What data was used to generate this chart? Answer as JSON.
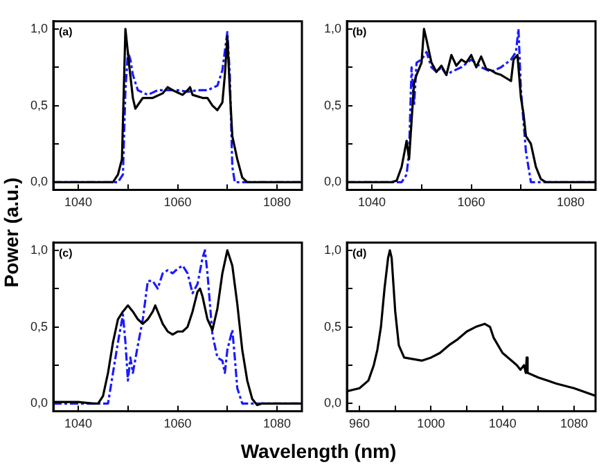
{
  "chart_data": [
    {
      "type": "line",
      "ylabel": "Power (a.u.)",
      "annotations": [
        "(a)"
      ],
      "xlim": [
        1035,
        1085
      ],
      "ylim": [
        -0.05,
        1.05
      ],
      "grid": false,
      "xticks": [
        1040,
        {
          "value": 1050,
          "label": null
        },
        1060,
        {
          "value": 1070,
          "label": null
        },
        1080
      ],
      "yticks": [
        {
          "value": 0,
          "label": "0,0"
        },
        {
          "value": 0.25,
          "label": null
        },
        {
          "value": 0.5,
          "label": "0,5"
        },
        {
          "value": 0.75,
          "label": null
        },
        {
          "value": 1,
          "label": "1,0"
        }
      ],
      "series": [
        {
          "color": "#000000",
          "line_style": "solid",
          "x": [
            1035,
            1047,
            1048,
            1048.8,
            1049.5,
            1050.3,
            1051,
            1051.5,
            1053,
            1055,
            1057,
            1058,
            1059,
            1061,
            1062,
            1062.5,
            1063,
            1065,
            1066,
            1067,
            1068,
            1069,
            1069.5,
            1070,
            1070.5,
            1071,
            1072,
            1073,
            1074,
            1085
          ],
          "values": [
            0,
            0,
            0.05,
            0.15,
            1.0,
            0.75,
            0.55,
            0.48,
            0.55,
            0.55,
            0.58,
            0.62,
            0.6,
            0.57,
            0.6,
            0.62,
            0.57,
            0.55,
            0.55,
            0.5,
            0.47,
            0.52,
            0.7,
            0.95,
            0.6,
            0.3,
            0.15,
            0.03,
            0,
            0
          ]
        },
        {
          "color": "#1a1aff",
          "line_style": "dashed",
          "x": [
            1035,
            1048,
            1049,
            1049.5,
            1050,
            1050.5,
            1051,
            1052,
            1054,
            1056,
            1058,
            1060,
            1062,
            1064,
            1066,
            1068,
            1069,
            1070,
            1070.5,
            1071,
            1071.5,
            1085
          ],
          "values": [
            0,
            0,
            0.05,
            0.6,
            0.85,
            0.8,
            0.7,
            0.6,
            0.57,
            0.6,
            0.6,
            0.6,
            0.59,
            0.6,
            0.6,
            0.63,
            0.73,
            0.98,
            0.7,
            0.1,
            0,
            0
          ]
        }
      ]
    },
    {
      "type": "line",
      "annotations": [
        "(b)"
      ],
      "xlim": [
        1035,
        1085
      ],
      "ylim": [
        -0.05,
        1.05
      ],
      "grid": false,
      "xticks": [
        1040,
        {
          "value": 1050,
          "label": null
        },
        1060,
        {
          "value": 1070,
          "label": null
        },
        1080
      ],
      "yticks": [
        {
          "value": 0,
          "label": "0,0"
        },
        {
          "value": 0.25,
          "label": null
        },
        {
          "value": 0.5,
          "label": "0,5"
        },
        {
          "value": 0.75,
          "label": null
        },
        {
          "value": 1,
          "label": "1,0"
        }
      ],
      "series": [
        {
          "color": "#000000",
          "line_style": "solid",
          "x": [
            1035,
            1044,
            1045,
            1046,
            1047,
            1047.5,
            1048,
            1048.5,
            1049,
            1050,
            1050.5,
            1051,
            1052,
            1053,
            1054,
            1055,
            1056,
            1057,
            1058,
            1059,
            1060,
            1061,
            1062,
            1063,
            1064,
            1065,
            1066,
            1067,
            1068,
            1068.5,
            1069.3,
            1070,
            1070.5,
            1071,
            1072,
            1073,
            1074,
            1075,
            1085
          ],
          "values": [
            0,
            0,
            0.01,
            0.1,
            0.27,
            0.15,
            0.4,
            0.65,
            0.7,
            0.78,
            1.0,
            0.93,
            0.78,
            0.72,
            0.76,
            0.7,
            0.83,
            0.76,
            0.8,
            0.78,
            0.83,
            0.75,
            0.82,
            0.74,
            0.73,
            0.71,
            0.7,
            0.68,
            0.66,
            0.8,
            0.83,
            0.55,
            0.45,
            0.3,
            0.25,
            0.1,
            0.02,
            0,
            0
          ]
        },
        {
          "color": "#1a1aff",
          "line_style": "dashed",
          "x": [
            1035,
            1046,
            1047,
            1047.5,
            1048,
            1048.5,
            1049,
            1050,
            1051,
            1052,
            1053,
            1054,
            1055,
            1056,
            1058,
            1060,
            1062,
            1064,
            1066,
            1068,
            1069,
            1069.5,
            1070,
            1070.5,
            1071,
            1071.5,
            1072,
            1085
          ],
          "values": [
            0,
            0,
            0.05,
            0.2,
            0.75,
            0.5,
            0.78,
            0.8,
            0.85,
            0.75,
            0.72,
            0.75,
            0.7,
            0.72,
            0.75,
            0.8,
            0.75,
            0.72,
            0.75,
            0.8,
            0.85,
            1.0,
            0.6,
            0.4,
            0.2,
            0.1,
            0,
            0
          ]
        }
      ]
    },
    {
      "type": "line",
      "xlabel": "Wavelength (nm)",
      "annotations": [
        "(c)"
      ],
      "xlim": [
        1035,
        1085
      ],
      "ylim": [
        -0.05,
        1.05
      ],
      "grid": false,
      "xticks": [
        1040,
        {
          "value": 1050,
          "label": null
        },
        1060,
        {
          "value": 1070,
          "label": null
        },
        1080
      ],
      "yticks": [
        {
          "value": 0,
          "label": "0,0"
        },
        {
          "value": 0.25,
          "label": null
        },
        {
          "value": 0.5,
          "label": "0,5"
        },
        {
          "value": 0.75,
          "label": null
        },
        {
          "value": 1,
          "label": "1,0"
        }
      ],
      "series": [
        {
          "color": "#000000",
          "line_style": "solid",
          "x": [
            1035,
            1040,
            1043,
            1044,
            1045,
            1046,
            1047,
            1048,
            1049,
            1050,
            1051,
            1052,
            1053,
            1054,
            1055,
            1055.5,
            1056,
            1057,
            1058,
            1059,
            1060,
            1061,
            1062,
            1063,
            1064,
            1064.5,
            1065,
            1066,
            1067,
            1068,
            1069,
            1070,
            1071,
            1072,
            1073,
            1074,
            1075,
            1076,
            1077,
            1085
          ],
          "values": [
            0.01,
            0.01,
            0,
            0,
            0.05,
            0.2,
            0.4,
            0.55,
            0.6,
            0.64,
            0.6,
            0.55,
            0.52,
            0.55,
            0.6,
            0.64,
            0.6,
            0.52,
            0.47,
            0.45,
            0.47,
            0.47,
            0.5,
            0.6,
            0.73,
            0.75,
            0.7,
            0.55,
            0.48,
            0.62,
            0.85,
            1.0,
            0.9,
            0.65,
            0.35,
            0.15,
            0.03,
            -0.01,
            0,
            0
          ]
        },
        {
          "color": "#1a1aff",
          "line_style": "dashed",
          "x": [
            1035,
            1044,
            1046,
            1047,
            1048,
            1049,
            1049.5,
            1050,
            1050.5,
            1051,
            1052,
            1053,
            1054,
            1055,
            1056,
            1057,
            1058,
            1059,
            1060,
            1061,
            1062,
            1063,
            1064,
            1065,
            1065.5,
            1066,
            1067,
            1068,
            1069,
            1069.5,
            1070,
            1071,
            1071.5,
            1072,
            1073,
            1085
          ],
          "values": [
            0,
            0,
            0,
            0.2,
            0.4,
            0.58,
            0.4,
            0.15,
            0.3,
            0.2,
            0.38,
            0.55,
            0.8,
            0.8,
            0.75,
            0.85,
            0.87,
            0.85,
            0.88,
            0.9,
            0.85,
            0.72,
            0.78,
            0.95,
            1.0,
            0.85,
            0.45,
            0.3,
            0.28,
            0.2,
            0.35,
            0.48,
            0.3,
            0.1,
            0,
            0
          ]
        }
      ]
    },
    {
      "type": "line",
      "annotations": [
        "(d)"
      ],
      "xlim": [
        953,
        1092
      ],
      "ylim": [
        -0.05,
        1.05
      ],
      "grid": false,
      "xticks": [
        960,
        {
          "value": 980,
          "label": null
        },
        1000,
        {
          "value": 1020,
          "label": null
        },
        1040,
        {
          "value": 1060,
          "label": null
        },
        1080
      ],
      "yticks": [
        {
          "value": 0,
          "label": "0,0"
        },
        {
          "value": 0.25,
          "label": null
        },
        {
          "value": 0.5,
          "label": "0,5"
        },
        {
          "value": 0.75,
          "label": null
        },
        {
          "value": 1,
          "label": "1,0"
        }
      ],
      "series": [
        {
          "color": "#000000",
          "line_style": "solid",
          "x": [
            953,
            960,
            965,
            968,
            970,
            972,
            974,
            976,
            977,
            978,
            980,
            982,
            985,
            990,
            995,
            1000,
            1005,
            1010,
            1015,
            1020,
            1025,
            1030,
            1033,
            1035,
            1040,
            1045,
            1048,
            1050,
            1052,
            1053,
            1053.5,
            1054,
            1060,
            1065,
            1070,
            1080,
            1092
          ],
          "values": [
            0.08,
            0.1,
            0.15,
            0.25,
            0.35,
            0.5,
            0.75,
            0.95,
            1.0,
            0.95,
            0.6,
            0.38,
            0.3,
            0.29,
            0.28,
            0.3,
            0.33,
            0.38,
            0.42,
            0.47,
            0.5,
            0.52,
            0.5,
            0.43,
            0.33,
            0.28,
            0.25,
            0.22,
            0.25,
            0.2,
            0.3,
            0.2,
            0.17,
            0.15,
            0.13,
            0.1,
            0.05
          ]
        }
      ]
    }
  ]
}
